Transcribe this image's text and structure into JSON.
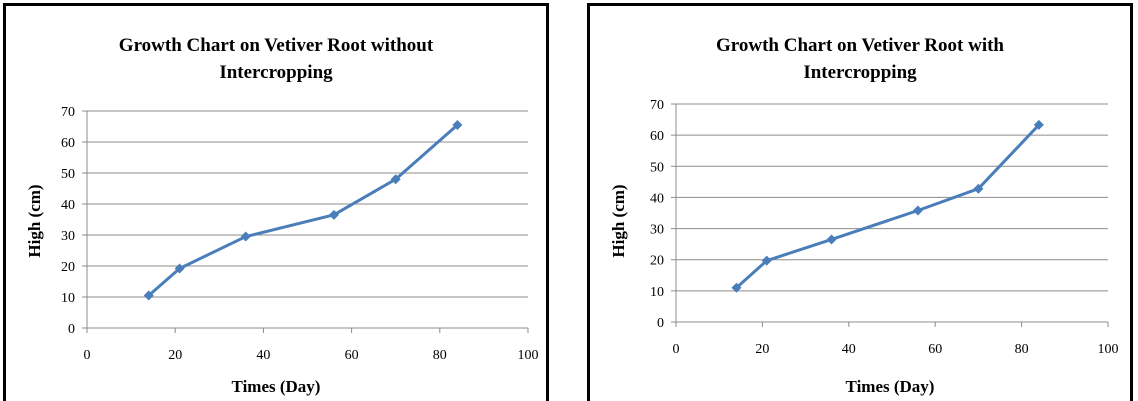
{
  "chart_data": [
    {
      "type": "line",
      "title_lines": [
        "Growth Chart on Vetiver Root without",
        "Intercropping"
      ],
      "xlabel": "Times (Day)",
      "ylabel": "High (cm)",
      "xlim": [
        0,
        100
      ],
      "ylim": [
        0,
        70
      ],
      "xticks": [
        "0",
        "20",
        "40",
        "60",
        "80",
        "100"
      ],
      "yticks": [
        "0",
        "10",
        "20",
        "30",
        "40",
        "50",
        "60",
        "70"
      ],
      "grid": true,
      "legend": "none",
      "series": [
        {
          "color": "#4a7ebb",
          "marker": "diamond",
          "x": [
            14,
            21,
            36,
            56,
            70,
            84
          ],
          "y": [
            10.5,
            19.2,
            29.5,
            36.5,
            48,
            65.5
          ]
        }
      ]
    },
    {
      "type": "line",
      "title_lines": [
        "Growth Chart on Vetiver Root with",
        "Intercropping"
      ],
      "xlabel": "Times (Day)",
      "ylabel": "High (cm)",
      "xlim": [
        0,
        100
      ],
      "ylim": [
        0,
        70
      ],
      "xticks": [
        "0",
        "20",
        "40",
        "60",
        "80",
        "100"
      ],
      "yticks": [
        "0",
        "10",
        "20",
        "30",
        "40",
        "50",
        "60",
        "70"
      ],
      "grid": true,
      "legend": "none",
      "series": [
        {
          "color": "#4a7ebb",
          "marker": "diamond",
          "x": [
            14,
            21,
            36,
            56,
            70,
            84
          ],
          "y": [
            11,
            19.7,
            26.5,
            35.8,
            42.8,
            63.3
          ]
        }
      ]
    }
  ]
}
